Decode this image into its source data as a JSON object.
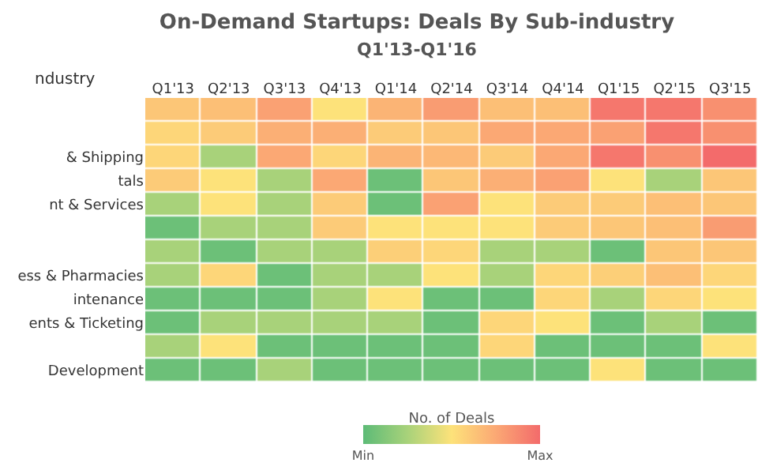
{
  "chart_data": {
    "type": "heatmap",
    "title": "On-Demand Startups: Deals By Sub-industry",
    "subtitle": "Q1'13-Q1'16",
    "ylabel": "ndustry",
    "clabel": "No. of Deals",
    "categories": [
      "Q1'13",
      "Q2'13",
      "Q3'13",
      "Q4'13",
      "Q1'14",
      "Q2'14",
      "Q3'14",
      "Q4'14",
      "Q1'15",
      "Q2'15",
      "Q3'15"
    ],
    "y_categories": [
      null,
      null,
      "& Shipping",
      "tals",
      "nt & Services",
      null,
      null,
      "ess & Pharmacies",
      "intenance",
      "ents & Ticketing",
      null,
      "Development"
    ],
    "cells": [
      [
        0.62,
        0.65,
        0.78,
        0.5,
        0.7,
        0.8,
        0.65,
        0.65,
        0.95,
        0.95,
        0.85
      ],
      [
        0.55,
        0.6,
        0.72,
        0.72,
        0.6,
        0.62,
        0.75,
        0.75,
        0.78,
        0.95,
        0.85
      ],
      [
        0.55,
        0.25,
        0.75,
        0.55,
        0.7,
        0.68,
        0.6,
        0.75,
        0.95,
        0.85,
        1.0
      ],
      [
        0.6,
        0.5,
        0.25,
        0.75,
        0.05,
        0.62,
        0.72,
        0.78,
        0.5,
        0.25,
        0.62
      ],
      [
        0.25,
        0.5,
        0.25,
        0.6,
        0.05,
        0.78,
        0.5,
        0.6,
        0.6,
        0.65,
        0.62
      ],
      [
        0.05,
        0.25,
        0.25,
        0.6,
        0.5,
        0.5,
        0.5,
        0.6,
        0.62,
        0.65,
        0.8
      ],
      [
        0.25,
        0.05,
        0.25,
        0.25,
        0.58,
        0.55,
        0.25,
        0.25,
        0.05,
        0.62,
        0.62
      ],
      [
        0.25,
        0.55,
        0.05,
        0.25,
        0.25,
        0.5,
        0.25,
        0.55,
        0.58,
        0.65,
        0.55
      ],
      [
        0.05,
        0.05,
        0.05,
        0.25,
        0.5,
        0.05,
        0.05,
        0.55,
        0.25,
        0.55,
        0.5
      ],
      [
        0.05,
        0.25,
        0.25,
        0.25,
        0.25,
        0.05,
        0.55,
        0.5,
        0.05,
        0.25,
        0.05
      ],
      [
        0.25,
        0.5,
        0.05,
        0.05,
        0.05,
        0.05,
        0.55,
        0.05,
        0.05,
        0.05,
        0.5
      ],
      [
        0.05,
        0.05,
        0.25,
        0.05,
        0.05,
        0.05,
        0.05,
        0.05,
        0.5,
        0.05,
        0.05
      ]
    ],
    "clim": [
      0,
      1
    ],
    "cticks": [
      {
        "value": 0,
        "label": "Min"
      },
      {
        "value": 1,
        "label": "Max"
      }
    ]
  }
}
